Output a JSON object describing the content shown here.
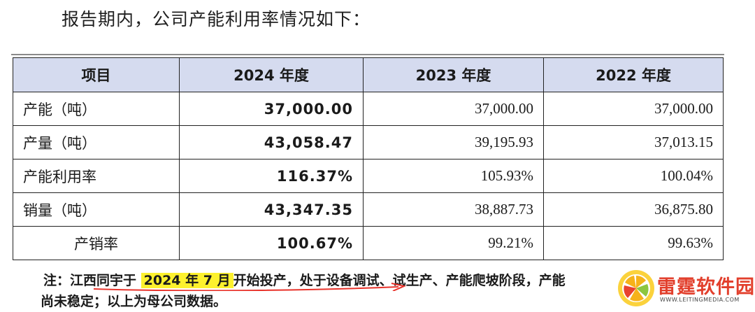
{
  "intro": "报告期内，公司产能利用率情况如下：",
  "table": {
    "headers": [
      "项目",
      "2024 年度",
      "2023 年度",
      "2022 年度"
    ],
    "rows": [
      {
        "label": "产能（吨）",
        "v2024": "37,000.00",
        "v2023": "37,000.00",
        "v2022": "37,000.00"
      },
      {
        "label": "产量（吨）",
        "v2024": "43,058.47",
        "v2023": "39,195.93",
        "v2022": "37,013.15"
      },
      {
        "label": "产能利用率",
        "v2024": "116.37%",
        "v2023": "105.93%",
        "v2022": "100.04%"
      },
      {
        "label": "销量（吨）",
        "v2024": "43,347.35",
        "v2023": "38,887.73",
        "v2022": "36,875.80"
      },
      {
        "label": "产销率",
        "v2024": "100.67%",
        "v2023": "99.21%",
        "v2022": "99.63%"
      }
    ]
  },
  "note": {
    "prefix": "注：江西同宇于 ",
    "highlight": "2024 年 7 月",
    "suffix": "开始投产，处于设备调试、试生产、产能爬坡阶段，产能",
    "line2": "尚未稳定；以上为母公司数据。"
  },
  "watermark": {
    "name": "雷霆软件园",
    "url": "WWW.LEITINGMEDIA.COM"
  },
  "colors": {
    "header_bg": "#d5dbef",
    "highlight": "#fdf12d",
    "annotation_red": "#e8322a",
    "logo_red": "#e23f2c"
  }
}
